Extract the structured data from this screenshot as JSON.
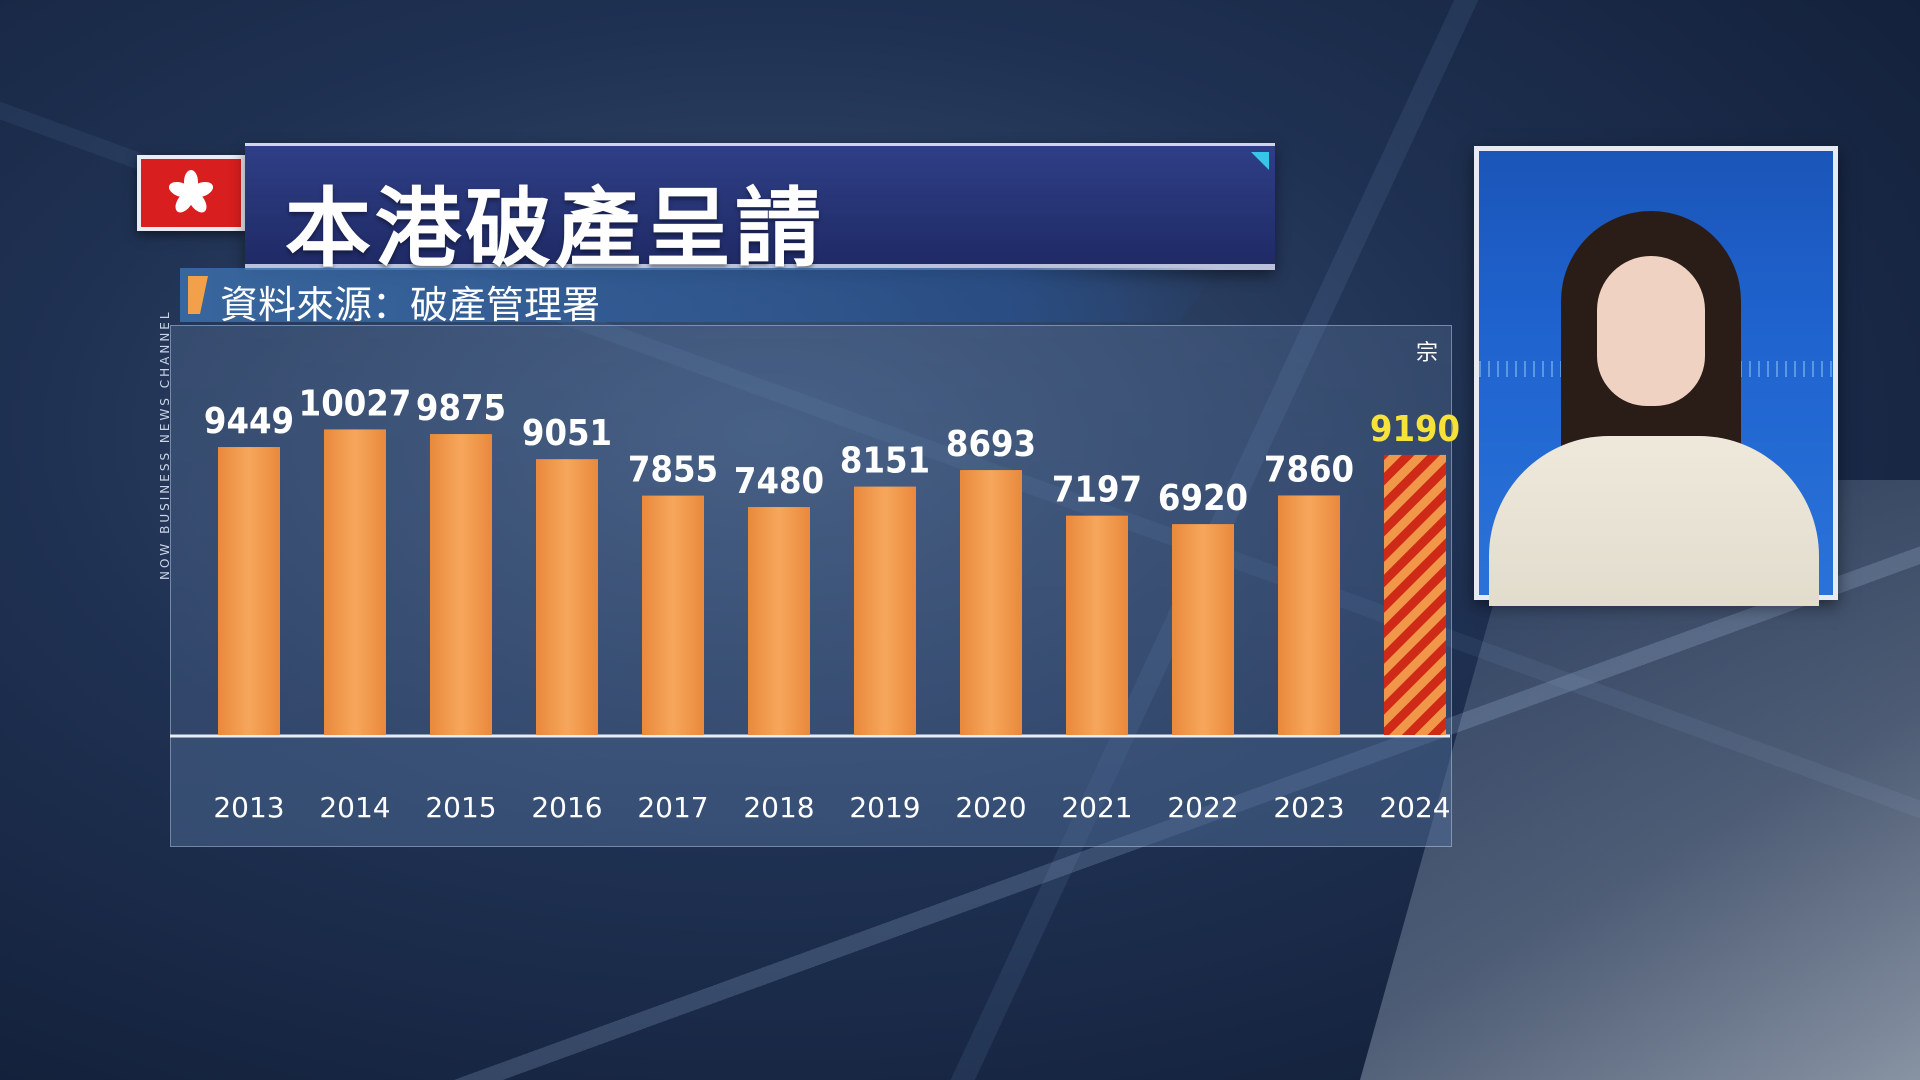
{
  "header": {
    "title": "本港破產呈請",
    "source": "資料來源：破產管理署",
    "channel": "NOW BUSINESS NEWS CHANNEL"
  },
  "chart_data": {
    "type": "bar",
    "unit": "宗",
    "categories": [
      "2013",
      "2014",
      "2015",
      "2016",
      "2017",
      "2018",
      "2019",
      "2020",
      "2021",
      "2022",
      "2023",
      "2024"
    ],
    "values": [
      9449,
      10027,
      9875,
      9051,
      7855,
      7480,
      8151,
      8693,
      7197,
      6920,
      7860,
      9190
    ],
    "highlight_index": 11,
    "ylim": [
      0,
      10500
    ],
    "grid": false,
    "bar_color": "#f0974a",
    "highlight_colors": [
      "#cf2a17",
      "#f0974a"
    ],
    "label_color": "#ffffff",
    "highlight_label_color": "#f7e23a"
  }
}
